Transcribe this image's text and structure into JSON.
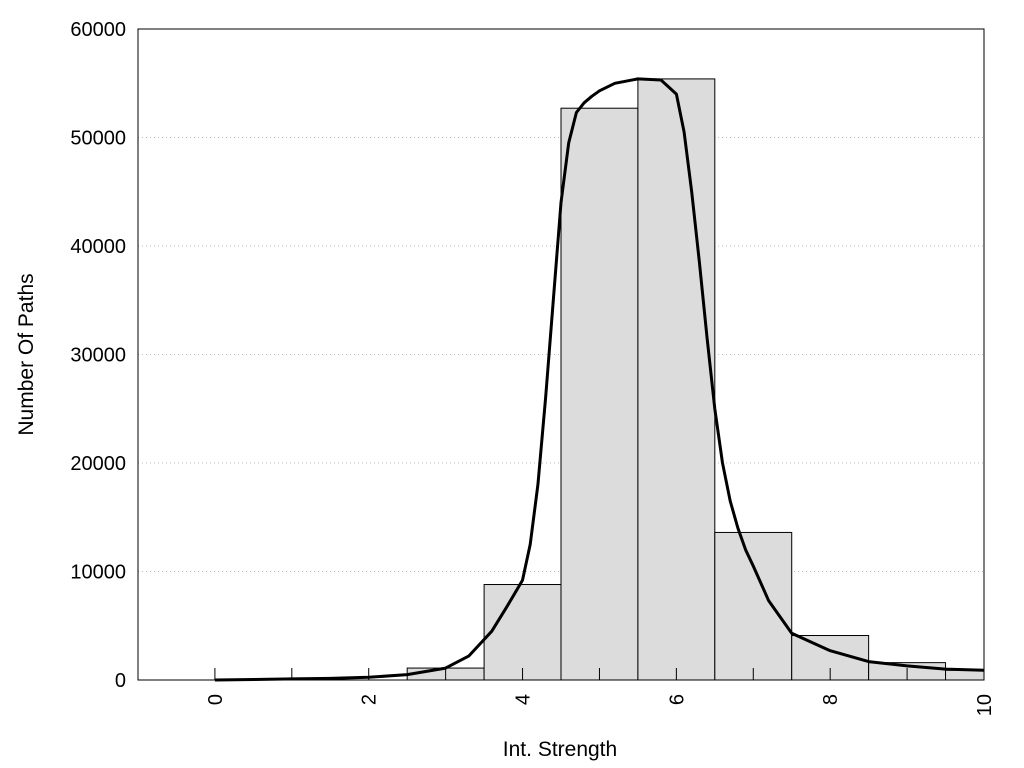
{
  "chart_data": {
    "type": "bar",
    "xlabel": "Int. Strength",
    "ylabel": "Number Of Paths",
    "xlim": [
      -1,
      10
    ],
    "ylim": [
      0,
      60000
    ],
    "x_ticks": [
      "0",
      "2",
      "4",
      "6",
      "8",
      "10"
    ],
    "y_ticks": [
      "0",
      "10000",
      "20000",
      "30000",
      "40000",
      "50000",
      "60000"
    ],
    "grid": "horizontal dotted",
    "bars": {
      "bin_width": 1,
      "centers": [
        0,
        1,
        2,
        3,
        4,
        5,
        6,
        7,
        8,
        9,
        10
      ],
      "values": [
        0,
        0,
        0,
        1100,
        8800,
        52700,
        55400,
        13600,
        4100,
        1600,
        900
      ]
    },
    "fit_curve": {
      "x": [
        0,
        0.5,
        1,
        1.5,
        2,
        2.5,
        3,
        3.3,
        3.6,
        3.8,
        4,
        4.1,
        4.2,
        4.3,
        4.4,
        4.5,
        4.6,
        4.7,
        4.8,
        4.9,
        5,
        5.2,
        5.5,
        5.8,
        6,
        6.1,
        6.2,
        6.3,
        6.4,
        6.5,
        6.6,
        6.7,
        6.8,
        6.9,
        7,
        7.2,
        7.5,
        8,
        8.5,
        9,
        9.5,
        10
      ],
      "y": [
        0,
        50,
        100,
        150,
        250,
        500,
        1100,
        2200,
        4500,
        6800,
        9200,
        12500,
        18000,
        26000,
        35000,
        44000,
        49500,
        52300,
        53200,
        53800,
        54300,
        55000,
        55400,
        55300,
        54000,
        50500,
        45000,
        38500,
        31500,
        25000,
        20000,
        16500,
        14000,
        12000,
        10500,
        7300,
        4300,
        2700,
        1700,
        1300,
        1000,
        900
      ]
    }
  }
}
